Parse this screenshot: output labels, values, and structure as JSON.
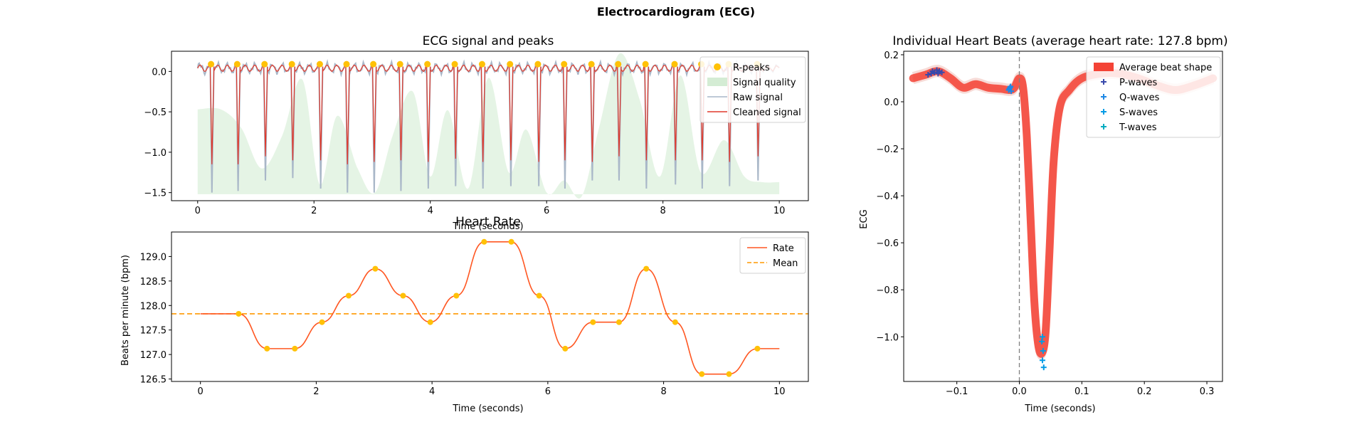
{
  "figure": {
    "title": "Electrocardiogram (ECG)"
  },
  "colors": {
    "ecg_cleaned": "#e0392b",
    "ecg_raw": "#a9b7c8",
    "r_peaks": "#ffc107",
    "quality_fill": "#d4ecd4",
    "rate_line": "#ff5722",
    "rate_mean": "#ff9800",
    "avg_beat": "#f44336",
    "p_waves": "#3949ab",
    "q_waves": "#1e88e5",
    "s_waves": "#039be5",
    "t_waves": "#00acc1",
    "r_line": "#808080"
  },
  "chart_data": [
    {
      "id": "ecg",
      "type": "line",
      "title": "ECG signal and peaks",
      "xlabel": "Time (seconds)",
      "ylabel": "",
      "xlim": [
        -0.45,
        10.5
      ],
      "ylim": [
        -1.6,
        0.25
      ],
      "xticks": [
        0,
        2,
        4,
        6,
        8,
        10
      ],
      "yticks": [
        0.0,
        -0.5,
        -1.0,
        -1.5
      ],
      "grid": false,
      "legend_position": "top-right",
      "legend": [
        "R-peaks",
        "Signal quality",
        "Raw signal",
        "Cleaned signal"
      ],
      "r_peaks_x": [
        0.23,
        0.68,
        1.15,
        1.62,
        2.1,
        2.56,
        3.02,
        3.48,
        3.95,
        4.42,
        4.89,
        5.37,
        5.85,
        6.3,
        6.77,
        7.23,
        7.7,
        8.2,
        8.66,
        9.13,
        9.62
      ],
      "r_peaks_y": [
        0.09,
        0.09,
        0.09,
        0.09,
        0.09,
        0.09,
        0.09,
        0.09,
        0.09,
        0.09,
        0.09,
        0.09,
        0.09,
        0.09,
        0.09,
        0.09,
        0.09,
        0.09,
        0.09,
        0.09,
        0.09
      ],
      "cleaned_trough_y": [
        -1.15,
        -1.15,
        -1.05,
        -1.1,
        -1.1,
        -1.15,
        -1.12,
        -1.1,
        -1.12,
        -1.08,
        -1.12,
        -1.1,
        -1.12,
        -1.1,
        -1.12,
        -1.05,
        -1.1,
        -1.1,
        -1.1,
        -1.12,
        -1.05
      ],
      "raw_trough_y": [
        -1.5,
        -1.48,
        -1.35,
        -1.32,
        -1.45,
        -1.5,
        -1.5,
        -1.48,
        -1.45,
        -1.42,
        -1.45,
        -1.42,
        -1.42,
        -1.45,
        -1.35,
        -1.35,
        -1.45,
        -1.4,
        -1.45,
        -1.42,
        -1.35
      ],
      "quality_x": [
        0,
        0.4,
        0.75,
        1.1,
        1.45,
        1.8,
        2.1,
        2.4,
        2.75,
        3.05,
        3.35,
        3.7,
        4.0,
        4.3,
        4.65,
        5.0,
        5.35,
        5.65,
        6.0,
        6.3,
        6.6,
        6.9,
        7.25,
        7.6,
        7.95,
        8.3,
        8.65,
        9.05,
        9.4,
        9.7,
        10
      ],
      "quality_y": [
        -0.47,
        -0.47,
        -0.7,
        -1.2,
        -0.8,
        -0.1,
        -1.4,
        -0.55,
        -1.2,
        -1.5,
        -0.8,
        -0.25,
        -1.3,
        -0.48,
        -1.45,
        -0.08,
        -1.25,
        -0.72,
        -1.5,
        -1.35,
        -1.55,
        -0.7,
        0.22,
        -0.35,
        -1.3,
        -0.05,
        -1.25,
        -0.85,
        -1.3,
        -1.37,
        -1.37
      ]
    },
    {
      "id": "rate",
      "type": "line",
      "title": "Heart Rate",
      "xlabel": "Time (seconds)",
      "ylabel": "Beats per minute (bpm)",
      "xlim": [
        -0.5,
        10.5
      ],
      "ylim": [
        126.45,
        129.5
      ],
      "xticks": [
        0,
        2,
        4,
        6,
        8,
        10
      ],
      "yticks": [
        126.5,
        127.0,
        127.5,
        128.0,
        128.5,
        129.0
      ],
      "grid": false,
      "legend_position": "top-right",
      "legend": [
        "Rate",
        "Mean"
      ],
      "mean": 127.83,
      "start": [
        0,
        127.83
      ],
      "end": [
        10.0,
        127.12
      ],
      "points_x": [
        0.66,
        1.15,
        1.63,
        2.1,
        2.56,
        3.02,
        3.5,
        3.97,
        4.42,
        4.9,
        5.37,
        5.85,
        6.3,
        6.78,
        7.23,
        7.7,
        8.2,
        8.66,
        9.13,
        9.62
      ],
      "points_y": [
        127.83,
        127.12,
        127.12,
        127.66,
        128.2,
        128.75,
        128.2,
        127.66,
        128.2,
        129.3,
        129.3,
        128.2,
        127.12,
        127.66,
        127.66,
        128.75,
        127.66,
        126.6,
        126.6,
        127.12
      ]
    },
    {
      "id": "beats",
      "type": "line",
      "title": "Individual Heart Beats (average heart rate: 127.8 bpm)",
      "xlabel": "Time (seconds)",
      "ylabel": "ECG",
      "xlim": [
        -0.185,
        0.325
      ],
      "ylim": [
        -1.19,
        0.215
      ],
      "xticks": [
        -0.1,
        0.0,
        0.1,
        0.2,
        0.3
      ],
      "yticks": [
        0.2,
        0.0,
        -0.2,
        -0.4,
        -0.6,
        -0.8,
        -1.0
      ],
      "grid": false,
      "legend_position": "top-right",
      "legend": [
        "Average beat shape",
        "P-waves",
        "Q-waves",
        "S-waves",
        "T-waves"
      ],
      "avg_x": [
        -0.17,
        -0.15,
        -0.13,
        -0.11,
        -0.09,
        -0.07,
        -0.05,
        -0.03,
        -0.015,
        -0.008,
        0.0,
        0.006,
        0.012,
        0.018,
        0.024,
        0.03,
        0.036,
        0.042,
        0.048,
        0.055,
        0.065,
        0.08,
        0.1,
        0.13,
        0.16,
        0.19,
        0.22,
        0.25,
        0.28,
        0.31
      ],
      "avg_y": [
        0.1,
        0.115,
        0.13,
        0.1,
        0.06,
        0.075,
        0.06,
        0.055,
        0.05,
        0.06,
        0.1,
        0.06,
        -0.15,
        -0.5,
        -0.85,
        -1.03,
        -1.07,
        -0.98,
        -0.65,
        -0.25,
        -0.02,
        0.05,
        0.1,
        0.12,
        0.12,
        0.1,
        0.07,
        0.05,
        0.07,
        0.1
      ],
      "p_waves": [
        [
          -0.146,
          0.115
        ],
        [
          -0.141,
          0.12
        ],
        [
          -0.136,
          0.125
        ],
        [
          -0.132,
          0.135
        ],
        [
          -0.128,
          0.13
        ],
        [
          -0.124,
          0.125
        ],
        [
          -0.139,
          0.13
        ],
        [
          -0.13,
          0.12
        ]
      ],
      "q_waves": [
        [
          -0.017,
          0.05
        ],
        [
          -0.015,
          0.06
        ],
        [
          -0.013,
          0.045
        ],
        [
          -0.016,
          0.055
        ],
        [
          -0.014,
          0.065
        ]
      ],
      "s_waves": [
        [
          0.036,
          -1.02
        ],
        [
          0.038,
          -1.06
        ],
        [
          0.037,
          -1.1
        ],
        [
          0.039,
          -1.13
        ],
        [
          0.037,
          -1.0
        ]
      ],
      "r_line_x": 0.0
    }
  ]
}
